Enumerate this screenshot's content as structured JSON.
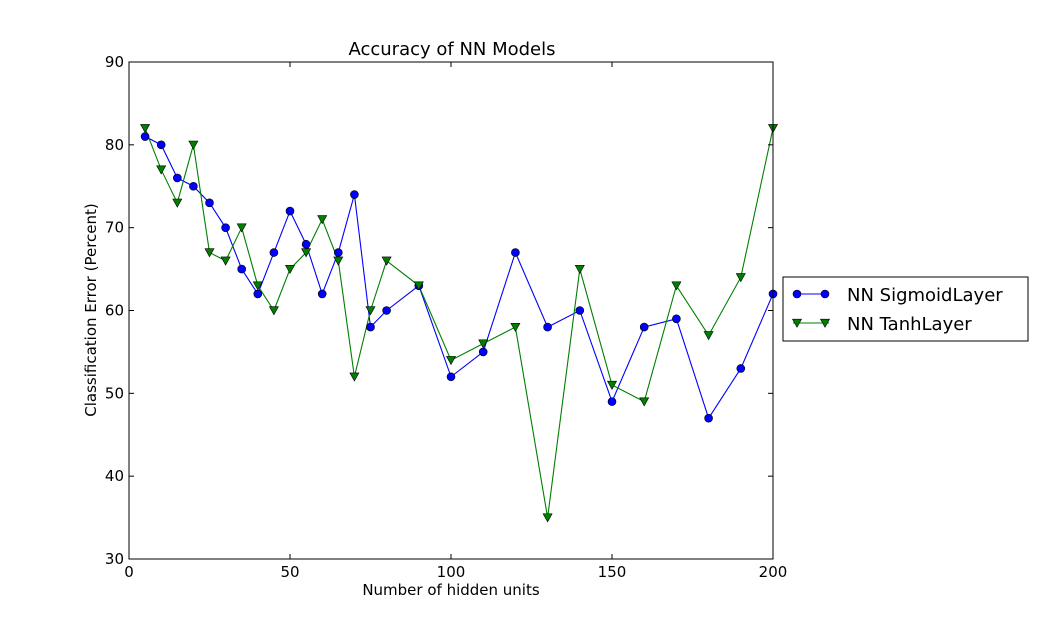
{
  "chart_data": {
    "type": "line",
    "title": "Accuracy of NN Models",
    "xlabel": "Number of hidden units",
    "ylabel": "Classification Error (Percent)",
    "xlim": [
      0,
      200
    ],
    "ylim": [
      30,
      90
    ],
    "xticks": [
      0,
      50,
      100,
      150,
      200
    ],
    "yticks": [
      30,
      40,
      50,
      60,
      70,
      80,
      90
    ],
    "grid": false,
    "legend_position": "outside-right",
    "x": [
      5,
      10,
      15,
      20,
      25,
      30,
      35,
      40,
      45,
      50,
      55,
      60,
      65,
      70,
      75,
      80,
      90,
      100,
      110,
      120,
      130,
      140,
      150,
      160,
      170,
      180,
      190,
      200
    ],
    "series": [
      {
        "name": "NN SigmoidLayer",
        "color": "#0000ff",
        "marker": "circle",
        "values": [
          81,
          80,
          76,
          75,
          73,
          70,
          65,
          62,
          67,
          72,
          68,
          62,
          67,
          74,
          58,
          60,
          63,
          52,
          55,
          67,
          58,
          60,
          49,
          58,
          59,
          47,
          53,
          62
        ]
      },
      {
        "name": "NN TanhLayer",
        "color": "#007f00",
        "marker": "triangle-down",
        "values": [
          82,
          77,
          73,
          80,
          67,
          66,
          70,
          63,
          60,
          65,
          67,
          71,
          66,
          52,
          60,
          66,
          63,
          54,
          56,
          58,
          35,
          65,
          51,
          49,
          63,
          57,
          64,
          82
        ]
      }
    ]
  }
}
